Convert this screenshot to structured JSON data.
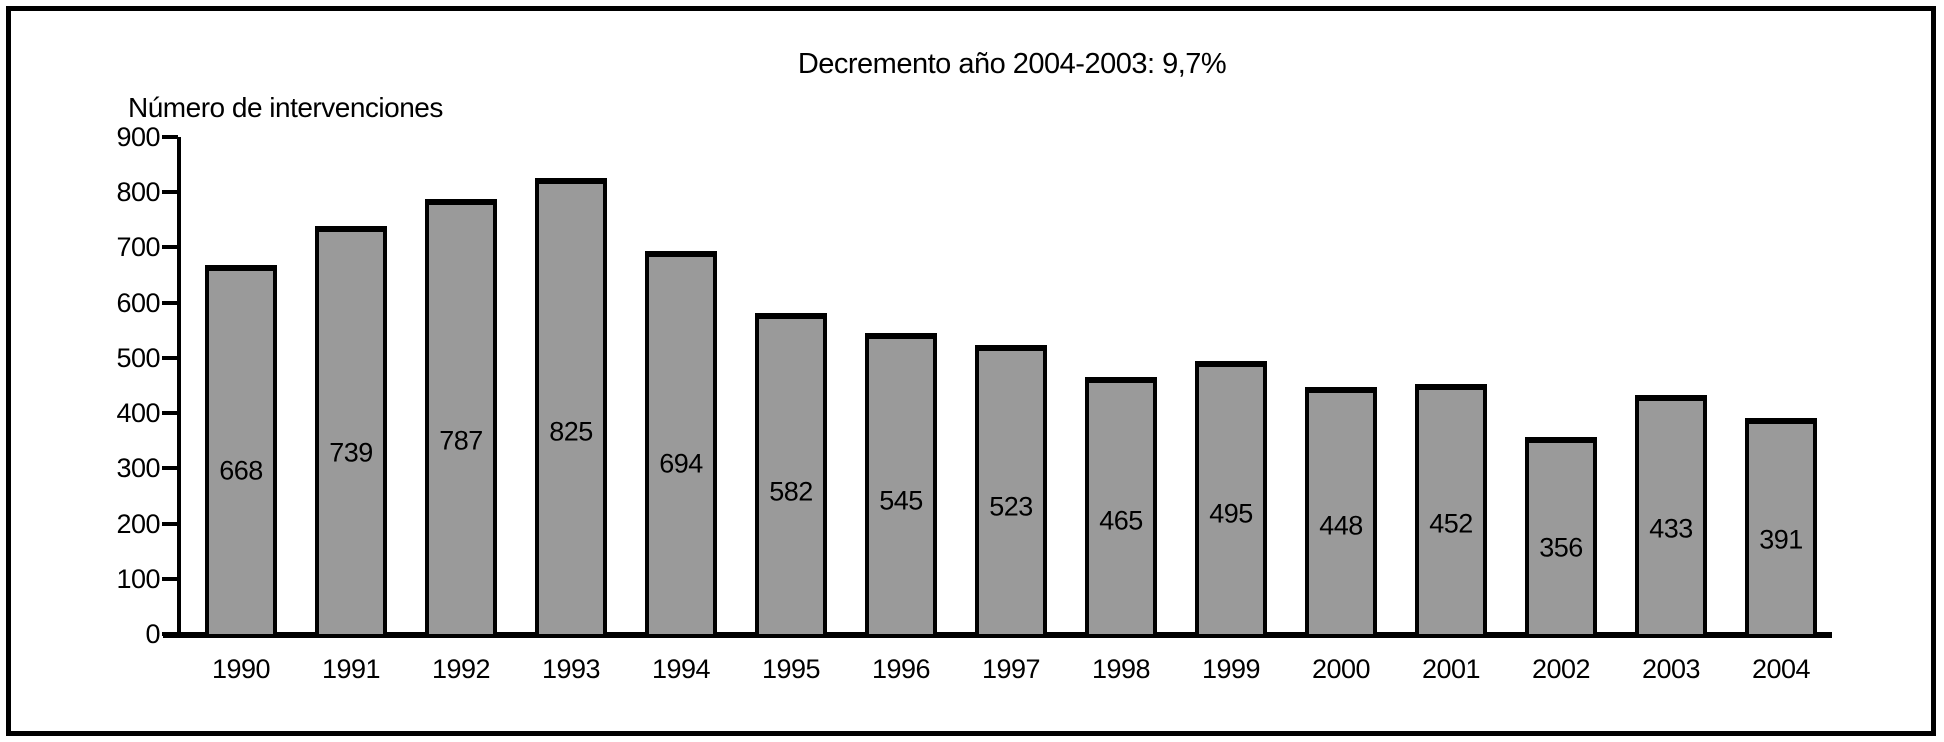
{
  "chart_data": {
    "type": "bar",
    "title": "Decremento año 2004-2003: 9,7%",
    "ylabel": "Número de intervenciones",
    "xlabel": "",
    "categories": [
      "1990",
      "1991",
      "1992",
      "1993",
      "1994",
      "1995",
      "1996",
      "1997",
      "1998",
      "1999",
      "2000",
      "2001",
      "2002",
      "2003",
      "2004"
    ],
    "values": [
      668,
      739,
      787,
      825,
      694,
      582,
      545,
      523,
      465,
      495,
      448,
      452,
      356,
      433,
      391
    ],
    "yticks": [
      0,
      100,
      200,
      300,
      400,
      500,
      600,
      700,
      800,
      900
    ],
    "ylim": [
      0,
      900
    ],
    "grid": "off",
    "legend": "none",
    "value_labels": "inside-bars",
    "bar_color": "#9a9a9a",
    "outline_color": "#000000",
    "background_color": "#ffffff",
    "text_color": "#000000"
  }
}
